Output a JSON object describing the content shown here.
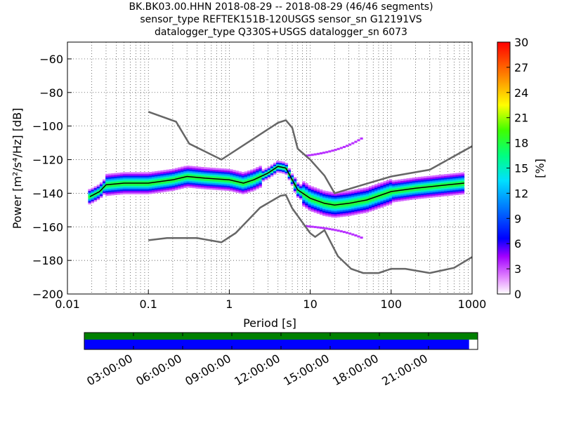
{
  "chart_data": {
    "type": "heatmap",
    "title_lines": [
      "BK.BK03.00.HHN   2018-08-29 -- 2018-08-29  (46/46 segments)",
      "sensor_type REFTEK151B-120USGS sensor_sn G12191VS",
      "datalogger_type Q330S+USGS datalogger_sn 6073"
    ],
    "xlabel": "Period [s]",
    "ylabel": "Power [m²/s⁴/Hz] [dB]",
    "xscale": "log",
    "xlim": [
      0.01,
      1000
    ],
    "ylim": [
      -200,
      -50
    ],
    "xticks": [
      0.01,
      0.1,
      1,
      10,
      100,
      1000
    ],
    "xtick_labels": [
      "0.01",
      "0.1",
      "1",
      "10",
      "100",
      "1000"
    ],
    "yticks": [
      -200,
      -180,
      -160,
      -140,
      -120,
      -100,
      -80,
      -60
    ],
    "colorbar": {
      "label": "[%]",
      "min": 0,
      "max": 30,
      "ticks": [
        0,
        3,
        6,
        9,
        12,
        15,
        18,
        21,
        24,
        27,
        30
      ]
    },
    "noise_model_high": [
      [
        0.1,
        -91.5
      ],
      [
        0.22,
        -97.4
      ],
      [
        0.32,
        -110.5
      ],
      [
        0.8,
        -120
      ],
      [
        4,
        -98
      ],
      [
        5,
        -96.5
      ],
      [
        6,
        -101
      ],
      [
        7,
        -113.5
      ],
      [
        10,
        -120
      ],
      [
        15,
        -129.5
      ],
      [
        20,
        -140
      ],
      [
        100,
        -130
      ],
      [
        300,
        -126
      ],
      [
        1000,
        -112
      ]
    ],
    "noise_model_low": [
      [
        0.1,
        -168
      ],
      [
        0.17,
        -166.7
      ],
      [
        0.4,
        -166.7
      ],
      [
        0.8,
        -169.2
      ],
      [
        1.2,
        -163.7
      ],
      [
        2.4,
        -148.6
      ],
      [
        4.3,
        -141.5
      ],
      [
        5,
        -141
      ],
      [
        6,
        -149
      ],
      [
        10,
        -163.8
      ],
      [
        11.5,
        -166
      ],
      [
        15,
        -162
      ],
      [
        22,
        -177.5
      ],
      [
        32,
        -185
      ],
      [
        45,
        -187.5
      ],
      [
        70,
        -187.5
      ],
      [
        100,
        -185
      ],
      [
        150,
        -185
      ],
      [
        300,
        -187.5
      ],
      [
        600,
        -184.4
      ],
      [
        1000,
        -178
      ]
    ],
    "mode_line": [
      [
        0.019,
        -142
      ],
      [
        0.025,
        -139
      ],
      [
        0.03,
        -135
      ],
      [
        0.05,
        -134
      ],
      [
        0.1,
        -134
      ],
      [
        0.2,
        -132
      ],
      [
        0.3,
        -130
      ],
      [
        0.5,
        -131
      ],
      [
        1,
        -132
      ],
      [
        1.5,
        -134
      ],
      [
        2,
        -132
      ],
      [
        3,
        -128
      ],
      [
        4,
        -124
      ],
      [
        5,
        -125
      ],
      [
        6,
        -132
      ],
      [
        7,
        -138
      ],
      [
        10,
        -143
      ],
      [
        15,
        -146
      ],
      [
        20,
        -147
      ],
      [
        30,
        -146
      ],
      [
        50,
        -144
      ],
      [
        100,
        -139
      ],
      [
        200,
        -137
      ],
      [
        500,
        -135
      ],
      [
        800,
        -134
      ]
    ],
    "timeline": {
      "tick_labels": [
        "03:00:00",
        "06:00:00",
        "09:00:00",
        "12:00:00",
        "15:00:00",
        "18:00:00",
        "21:00:00"
      ],
      "coverage_fraction": 0.978,
      "colors": {
        "top": "#008000",
        "bottom": "#0000ff"
      }
    }
  }
}
